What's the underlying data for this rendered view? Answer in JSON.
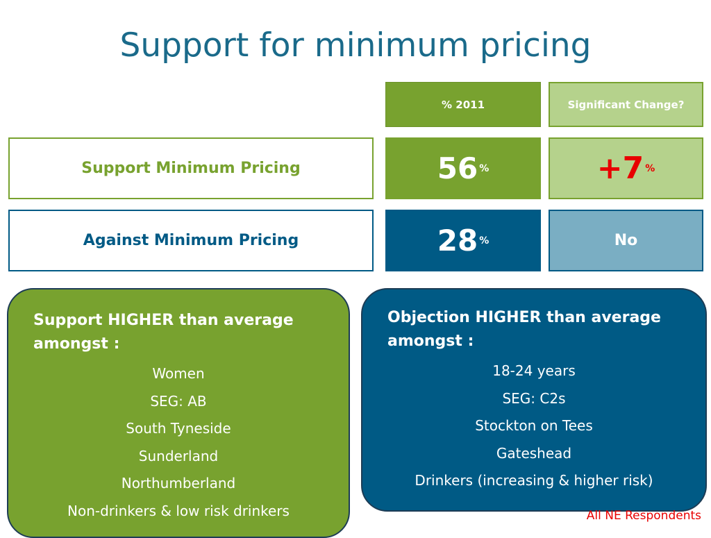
{
  "title": "Support for minimum pricing",
  "colors": {
    "green": "#78a22f",
    "light_green": "#b5d28c",
    "blue": "#005a85",
    "light_blue": "#7aaec3",
    "red": "#e80000"
  },
  "headers": {
    "percent_2011": "% 2011",
    "significant_change": "Significant Change?"
  },
  "rows": [
    {
      "label": "Support Minimum Pricing",
      "value": "56",
      "unit": "%",
      "change": "+7",
      "change_unit": "%"
    },
    {
      "label": "Against Minimum Pricing",
      "value": "28",
      "unit": "%",
      "change": "No"
    }
  ],
  "support_panel": {
    "heading": "Support HIGHER than average amongst :",
    "items": [
      "Women",
      "SEG: AB",
      "South Tyneside",
      "Sunderland",
      "Northumberland",
      "Non-drinkers & low risk drinkers"
    ]
  },
  "objection_panel": {
    "heading": "Objection HIGHER than average amongst :",
    "items": [
      "18-24 years",
      "SEG: C2s",
      "Stockton on Tees",
      "Gateshead",
      "Drinkers (increasing & higher risk)"
    ]
  },
  "footnote": "All NE Respondents"
}
